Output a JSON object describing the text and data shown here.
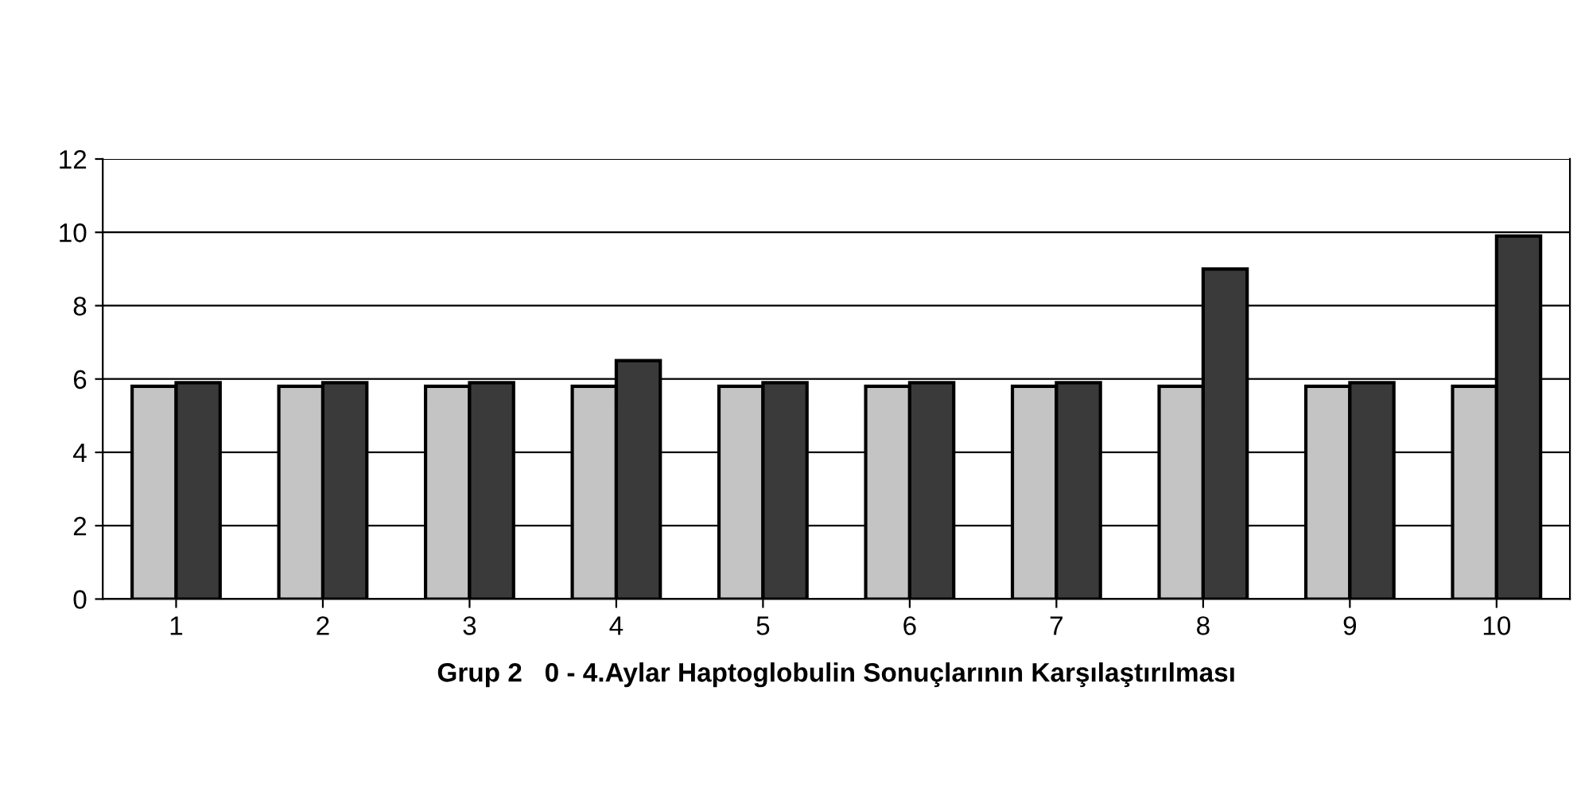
{
  "chart_data": {
    "type": "bar",
    "xlabel": "Grup 2   0 - 4.Aylar Haptoglobulin Sonuçlarının Karşılaştırılması",
    "categories": [
      "1",
      "2",
      "3",
      "4",
      "5",
      "6",
      "7",
      "8",
      "9",
      "10"
    ],
    "series": [
      {
        "color": "#c4c4c4",
        "values": [
          5.8,
          5.8,
          5.8,
          5.8,
          5.8,
          5.8,
          5.8,
          5.8,
          5.8,
          5.8
        ]
      },
      {
        "color": "#3a3a3a",
        "values": [
          5.9,
          5.9,
          5.9,
          6.5,
          5.9,
          5.9,
          5.9,
          9.0,
          5.9,
          9.9
        ]
      }
    ],
    "ylim": [
      0,
      12
    ],
    "yticks": [
      0,
      2,
      4,
      6,
      8,
      10,
      12
    ],
    "grid": "y",
    "legend": false
  }
}
